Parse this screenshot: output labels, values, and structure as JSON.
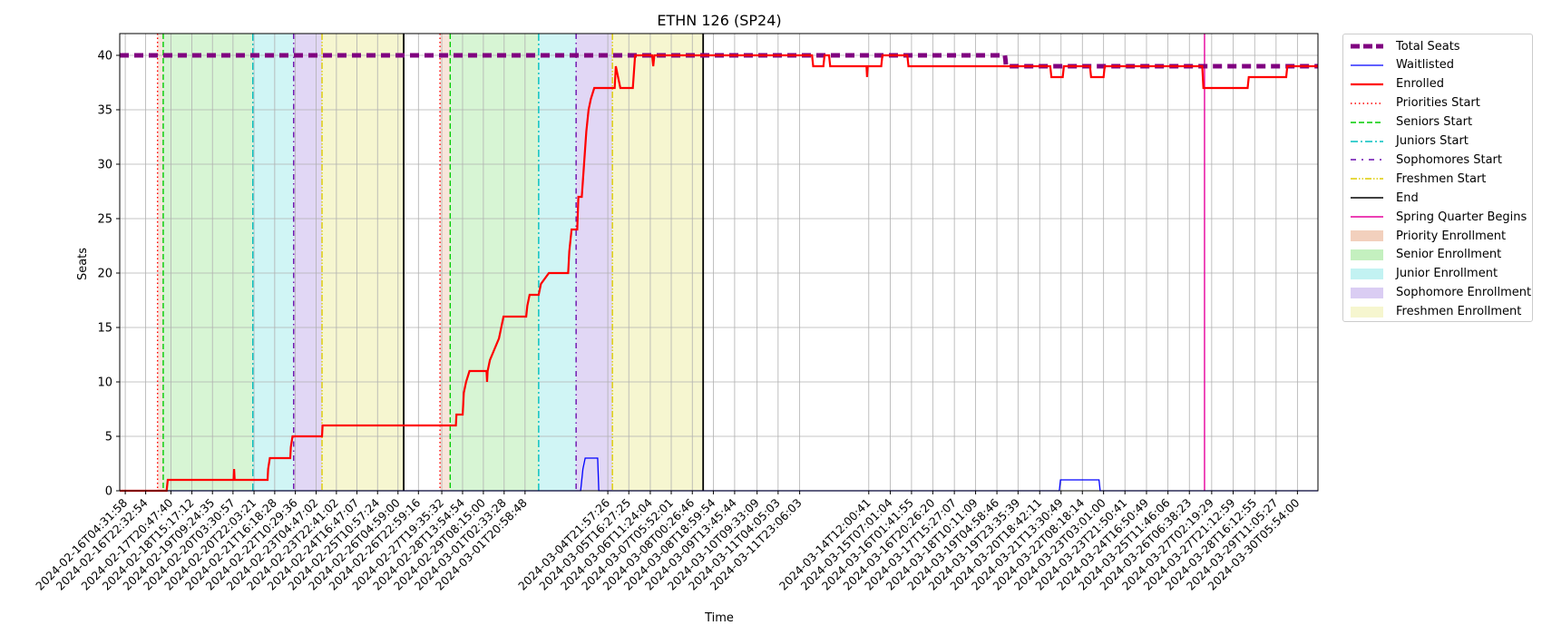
{
  "chart_data": {
    "type": "line",
    "title": "ETHN 126 (SP24)",
    "xlabel": "Time",
    "ylabel": "Seats",
    "ylim": [
      0,
      42
    ],
    "yticks": [
      0,
      5,
      10,
      15,
      20,
      25,
      30,
      35,
      40
    ],
    "grid": true,
    "legend_placement": "outside upper right",
    "x_axis_note": "date-time axis; span starts just before 2024-02-16T04:31:58 and ends just after 2024-03-30T05:54:00",
    "x_start": "2024-02-15T23:40:00",
    "x_end": "2024-03-31T00:00:00",
    "x_tick_labels": [
      "2024-02-16T04:31:58",
      "2024-02-16T22:32:54",
      "2024-02-17T20:47:40",
      "2024-02-18T15:17:12",
      "2024-02-19T09:24:35",
      "2024-02-20T03:30:57",
      "2024-02-20T22:03:21",
      "2024-02-21T16:18:28",
      "2024-02-22T10:29:36",
      "2024-02-23T04:47:02",
      "2024-02-23T22:41:02",
      "2024-02-24T16:47:07",
      "2024-02-25T10:57:24",
      "2024-02-26T04:59:00",
      "2024-02-26T22:59:16",
      "2024-02-27T19:35:32",
      "2024-02-28T13:54:54",
      "2024-02-29T08:15:00",
      "2024-03-01T02:33:28",
      "2024-03-01T20:58:48",
      "2024-03-04T21:57:26",
      "2024-03-05T16:27:25",
      "2024-03-06T11:24:04",
      "2024-03-07T05:52:01",
      "2024-03-08T00:26:46",
      "2024-03-08T18:59:54",
      "2024-03-09T13:45:44",
      "2024-03-10T09:33:09",
      "2024-03-11T04:05:03",
      "2024-03-11T23:06:03",
      "2024-03-14T12:00:41",
      "2024-03-15T07:01:04",
      "2024-03-16T01:41:55",
      "2024-03-16T20:26:20",
      "2024-03-17T15:27:07",
      "2024-03-18T10:11:09",
      "2024-03-19T04:58:46",
      "2024-03-19T23:35:39",
      "2024-03-20T18:42:11",
      "2024-03-21T13:30:49",
      "2024-03-22T08:18:14",
      "2024-03-23T03:01:00",
      "2024-03-23T21:50:41",
      "2024-03-24T16:50:49",
      "2024-03-25T11:46:06",
      "2024-03-26T06:38:23",
      "2024-03-27T02:19:29",
      "2024-03-27T21:12:59",
      "2024-03-28T16:12:55",
      "2024-03-29T11:05:27",
      "2024-03-30T05:54:00"
    ],
    "periods": [
      {
        "name": "Priority Enrollment",
        "color": "#f2d0bd",
        "opacity": 0.55,
        "start": "2024-02-17T09:00:00",
        "end": "2024-02-17T14:00:00"
      },
      {
        "name": "Senior Enrollment",
        "color": "#a6e8a0",
        "opacity": 0.45,
        "start": "2024-02-17T14:00:00",
        "end": "2024-02-20T21:00:00"
      },
      {
        "name": "Junior Enrollment",
        "color": "#a2ecec",
        "opacity": 0.5,
        "start": "2024-02-20T21:00:00",
        "end": "2024-02-22T09:00:00"
      },
      {
        "name": "Sophomore Enrollment",
        "color": "#c9b6ec",
        "opacity": 0.55,
        "start": "2024-02-22T09:00:00",
        "end": "2024-02-23T10:00:00"
      },
      {
        "name": "Freshmen Enrollment",
        "color": "#f4f4c4",
        "opacity": 0.8,
        "start": "2024-02-23T10:00:00",
        "end": "2024-02-26T10:00:00"
      },
      {
        "name": "Priority Enrollment",
        "color": "#f2d0bd",
        "opacity": 0.55,
        "start": "2024-02-27T18:00:00",
        "end": "2024-02-28T03:00:00"
      },
      {
        "name": "Senior Enrollment",
        "color": "#a6e8a0",
        "opacity": 0.45,
        "start": "2024-02-28T03:00:00",
        "end": "2024-03-02T09:00:00"
      },
      {
        "name": "Junior Enrollment",
        "color": "#a2ecec",
        "opacity": 0.5,
        "start": "2024-03-02T09:00:00",
        "end": "2024-03-03T18:00:00"
      },
      {
        "name": "Sophomore Enrollment",
        "color": "#c9b6ec",
        "opacity": 0.55,
        "start": "2024-03-03T18:00:00",
        "end": "2024-03-05T02:00:00"
      },
      {
        "name": "Freshmen Enrollment",
        "color": "#f4f4c4",
        "opacity": 0.8,
        "start": "2024-03-05T02:00:00",
        "end": "2024-03-08T10:00:00"
      }
    ],
    "vlines": [
      {
        "name": "Priorities Start",
        "color": "#ff0000",
        "dash": "1.5,3",
        "time": "2024-02-17T09:00:00"
      },
      {
        "name": "Seniors Start",
        "color": "#00cc00",
        "dash": "6,3",
        "time": "2024-02-17T14:00:00"
      },
      {
        "name": "Juniors Start",
        "color": "#00bfbf",
        "dash": "8,3,2,3",
        "time": "2024-02-20T21:00:00"
      },
      {
        "name": "Sophomores Start",
        "color": "#6a0dad",
        "dash": "6,4,1.5,4",
        "time": "2024-02-22T09:00:00"
      },
      {
        "name": "Freshmen Start",
        "color": "#ddcc00",
        "dash": "7,2,1.5,2,1.5,2",
        "time": "2024-02-23T10:00:00"
      },
      {
        "name": "End",
        "color": "#000000",
        "dash": "",
        "time": "2024-02-26T10:00:00"
      },
      {
        "name": "Priorities Start",
        "color": "#ff0000",
        "dash": "1.5,3",
        "time": "2024-02-27T18:00:00"
      },
      {
        "name": "Seniors Start",
        "color": "#00cc00",
        "dash": "6,3",
        "time": "2024-02-28T03:00:00"
      },
      {
        "name": "Juniors Start",
        "color": "#00bfbf",
        "dash": "8,3,2,3",
        "time": "2024-03-02T09:00:00"
      },
      {
        "name": "Sophomores Start",
        "color": "#6a0dad",
        "dash": "6,4,1.5,4",
        "time": "2024-03-03T18:00:00"
      },
      {
        "name": "Freshmen Start",
        "color": "#ddcc00",
        "dash": "7,2,1.5,2,1.5,2",
        "time": "2024-03-05T02:00:00"
      },
      {
        "name": "End",
        "color": "#000000",
        "dash": "",
        "time": "2024-03-08T10:00:00"
      },
      {
        "name": "Spring Quarter Begins",
        "color": "#e6009c",
        "dash": "",
        "time": "2024-03-26T20:00:00"
      }
    ],
    "series": [
      {
        "name": "Total Seats",
        "color": "#800080",
        "points": [
          [
            "2024-02-15T23:40:00",
            40
          ],
          [
            "2024-03-19T12:00:00",
            40
          ],
          [
            "2024-03-19T12:30:00",
            39.6
          ],
          [
            "2024-03-19T13:00:00",
            39
          ],
          [
            "2024-03-31T00:00:00",
            39
          ]
        ]
      },
      {
        "name": "Waitlisted",
        "color": "#0000ff",
        "points": [
          [
            "2024-02-15T23:40:00",
            0
          ],
          [
            "2024-03-03T22:00:00",
            0
          ],
          [
            "2024-03-04T00:00:00",
            2
          ],
          [
            "2024-03-04T02:00:00",
            3
          ],
          [
            "2024-03-04T13:00:00",
            3
          ],
          [
            "2024-03-04T14:00:00",
            0
          ],
          [
            "2024-03-21T12:00:00",
            0
          ],
          [
            "2024-03-21T13:00:00",
            1
          ],
          [
            "2024-03-22T23:00:00",
            1
          ],
          [
            "2024-03-23T00:00:00",
            0
          ],
          [
            "2024-03-31T00:00:00",
            0
          ]
        ]
      },
      {
        "name": "Enrolled",
        "color": "#ff0000",
        "points": [
          [
            "2024-02-15T23:40:00",
            0
          ],
          [
            "2024-02-17T17:00:00",
            0
          ],
          [
            "2024-02-17T18:00:00",
            1
          ],
          [
            "2024-02-20T04:00:00",
            1
          ],
          [
            "2024-02-20T04:30:00",
            2
          ],
          [
            "2024-02-20T05:00:00",
            1
          ],
          [
            "2024-02-21T10:00:00",
            1
          ],
          [
            "2024-02-21T10:30:00",
            2
          ],
          [
            "2024-02-21T12:00:00",
            3
          ],
          [
            "2024-02-22T06:00:00",
            3
          ],
          [
            "2024-02-22T06:30:00",
            4
          ],
          [
            "2024-02-22T08:00:00",
            5
          ],
          [
            "2024-02-23T10:00:00",
            5
          ],
          [
            "2024-02-23T10:30:00",
            6
          ],
          [
            "2024-02-28T08:00:00",
            6
          ],
          [
            "2024-02-28T08:30:00",
            7
          ],
          [
            "2024-02-28T14:00:00",
            7
          ],
          [
            "2024-02-28T15:00:00",
            9
          ],
          [
            "2024-02-28T17:00:00",
            10
          ],
          [
            "2024-02-28T20:00:00",
            11
          ],
          [
            "2024-02-29T11:00:00",
            11
          ],
          [
            "2024-02-29T11:30:00",
            10
          ],
          [
            "2024-02-29T12:00:00",
            11
          ],
          [
            "2024-02-29T14:00:00",
            12
          ],
          [
            "2024-02-29T18:00:00",
            13
          ],
          [
            "2024-02-29T22:00:00",
            14
          ],
          [
            "2024-03-01T00:00:00",
            15
          ],
          [
            "2024-03-01T02:00:00",
            16
          ],
          [
            "2024-03-01T22:00:00",
            16
          ],
          [
            "2024-03-01T23:00:00",
            17
          ],
          [
            "2024-03-02T01:00:00",
            18
          ],
          [
            "2024-03-02T09:00:00",
            18
          ],
          [
            "2024-03-02T11:00:00",
            19
          ],
          [
            "2024-03-02T18:00:00",
            20
          ],
          [
            "2024-03-03T11:00:00",
            20
          ],
          [
            "2024-03-03T12:00:00",
            22
          ],
          [
            "2024-03-03T14:00:00",
            24
          ],
          [
            "2024-03-03T19:00:00",
            24
          ],
          [
            "2024-03-03T20:00:00",
            27
          ],
          [
            "2024-03-03T23:00:00",
            27
          ],
          [
            "2024-03-04T01:00:00",
            30
          ],
          [
            "2024-03-04T03:00:00",
            33
          ],
          [
            "2024-03-04T05:00:00",
            35
          ],
          [
            "2024-03-04T07:00:00",
            36
          ],
          [
            "2024-03-04T10:00:00",
            37
          ],
          [
            "2024-03-05T04:00:00",
            37
          ],
          [
            "2024-03-05T05:00:00",
            39
          ],
          [
            "2024-03-05T09:00:00",
            37
          ],
          [
            "2024-03-05T20:00:00",
            37
          ],
          [
            "2024-03-05T22:00:00",
            40
          ],
          [
            "2024-03-06T13:00:00",
            40
          ],
          [
            "2024-03-06T14:00:00",
            39
          ],
          [
            "2024-03-06T15:00:00",
            40
          ],
          [
            "2024-03-12T10:00:00",
            40
          ],
          [
            "2024-03-12T11:00:00",
            39
          ],
          [
            "2024-03-12T20:00:00",
            39
          ],
          [
            "2024-03-12T21:00:00",
            40
          ],
          [
            "2024-03-13T01:00:00",
            40
          ],
          [
            "2024-03-13T02:00:00",
            39
          ],
          [
            "2024-03-14T10:00:00",
            39
          ],
          [
            "2024-03-14T10:30:00",
            38
          ],
          [
            "2024-03-14T11:00:00",
            39
          ],
          [
            "2024-03-14T23:00:00",
            39
          ],
          [
            "2024-03-15T00:00:00",
            40
          ],
          [
            "2024-03-15T22:00:00",
            40
          ],
          [
            "2024-03-15T23:00:00",
            39
          ],
          [
            "2024-03-21T04:00:00",
            39
          ],
          [
            "2024-03-21T05:00:00",
            38
          ],
          [
            "2024-03-21T15:00:00",
            38
          ],
          [
            "2024-03-21T16:00:00",
            39
          ],
          [
            "2024-03-22T15:00:00",
            39
          ],
          [
            "2024-03-22T16:00:00",
            38
          ],
          [
            "2024-03-23T03:00:00",
            38
          ],
          [
            "2024-03-23T04:00:00",
            39
          ],
          [
            "2024-03-26T18:00:00",
            39
          ],
          [
            "2024-03-26T19:00:00",
            37
          ],
          [
            "2024-03-28T10:00:00",
            37
          ],
          [
            "2024-03-28T11:00:00",
            38
          ],
          [
            "2024-03-29T20:00:00",
            38
          ],
          [
            "2024-03-29T21:00:00",
            39
          ],
          [
            "2024-03-31T00:00:00",
            39
          ]
        ]
      }
    ],
    "legend": [
      {
        "label": "Total Seats",
        "kind": "line",
        "color": "#800080",
        "width": 5,
        "dash": "10,4"
      },
      {
        "label": "Waitlisted",
        "kind": "line",
        "color": "#0000ff",
        "width": 1.2,
        "dash": ""
      },
      {
        "label": "Enrolled",
        "kind": "line",
        "color": "#ff0000",
        "width": 2.2,
        "dash": ""
      },
      {
        "label": "Priorities Start",
        "kind": "line",
        "color": "#ff0000",
        "width": 1.4,
        "dash": "1.5,3"
      },
      {
        "label": "Seniors Start",
        "kind": "line",
        "color": "#00cc00",
        "width": 1.4,
        "dash": "6,3"
      },
      {
        "label": "Juniors Start",
        "kind": "line",
        "color": "#00bfbf",
        "width": 1.4,
        "dash": "8,3,2,3"
      },
      {
        "label": "Sophomores Start",
        "kind": "line",
        "color": "#6a0dad",
        "width": 1.6,
        "dash": "6,6,2,6"
      },
      {
        "label": "Freshmen Start",
        "kind": "line",
        "color": "#ddcc00",
        "width": 1.4,
        "dash": "7,2,1.5,2,1.5,2"
      },
      {
        "label": "End",
        "kind": "line",
        "color": "#000000",
        "width": 1.6,
        "dash": ""
      },
      {
        "label": "Spring Quarter Begins",
        "kind": "line",
        "color": "#e6009c",
        "width": 1.4,
        "dash": ""
      },
      {
        "label": "Priority Enrollment",
        "kind": "patch",
        "color": "#f2d0bd",
        "width": 0,
        "dash": ""
      },
      {
        "label": "Senior Enrollment",
        "kind": "patch",
        "color": "#c4f0bf",
        "width": 0,
        "dash": ""
      },
      {
        "label": "Junior Enrollment",
        "kind": "patch",
        "color": "#c2f2f2",
        "width": 0,
        "dash": ""
      },
      {
        "label": "Sophomore Enrollment",
        "kind": "patch",
        "color": "#dacdf3",
        "width": 0,
        "dash": ""
      },
      {
        "label": "Freshmen Enrollment",
        "kind": "patch",
        "color": "#f6f6cf",
        "width": 0,
        "dash": ""
      }
    ]
  }
}
